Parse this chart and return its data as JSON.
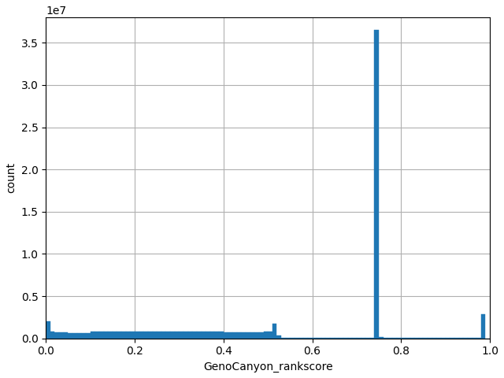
{
  "xlabel": "GenoCanyon_rankscore",
  "ylabel": "count",
  "bar_color": "#1f77b4",
  "xlim": [
    0.0,
    1.0
  ],
  "ylim": [
    0,
    38000000.0
  ],
  "grid": true,
  "figsize": [
    6.4,
    4.8
  ],
  "dpi": 100,
  "xticks": [
    0.0,
    0.2,
    0.4,
    0.6,
    0.8,
    1.0
  ],
  "yticks": [
    0,
    5000000.0,
    10000000.0,
    15000000.0,
    20000000.0,
    25000000.0,
    30000000.0,
    35000000.0
  ],
  "bin_edges": [
    0.0,
    0.01,
    0.02,
    0.03,
    0.04,
    0.05,
    0.06,
    0.07,
    0.08,
    0.09,
    0.1,
    0.11,
    0.12,
    0.13,
    0.14,
    0.15,
    0.16,
    0.17,
    0.18,
    0.19,
    0.2,
    0.21,
    0.22,
    0.23,
    0.24,
    0.25,
    0.26,
    0.27,
    0.28,
    0.29,
    0.3,
    0.31,
    0.32,
    0.33,
    0.34,
    0.35,
    0.36,
    0.37,
    0.38,
    0.39,
    0.4,
    0.41,
    0.42,
    0.43,
    0.44,
    0.45,
    0.46,
    0.47,
    0.48,
    0.49,
    0.5,
    0.51,
    0.52,
    0.53,
    0.54,
    0.55,
    0.56,
    0.57,
    0.58,
    0.59,
    0.6,
    0.61,
    0.62,
    0.63,
    0.64,
    0.65,
    0.66,
    0.67,
    0.68,
    0.69,
    0.7,
    0.71,
    0.72,
    0.73,
    0.74,
    0.75,
    0.76,
    0.77,
    0.78,
    0.79,
    0.8,
    0.81,
    0.82,
    0.83,
    0.84,
    0.85,
    0.86,
    0.87,
    0.88,
    0.89,
    0.9,
    0.91,
    0.92,
    0.93,
    0.94,
    0.95,
    0.96,
    0.97,
    0.98,
    0.99,
    1.0
  ],
  "counts": [
    2000000,
    800000,
    700000,
    700000,
    700000,
    650000,
    650000,
    650000,
    650000,
    650000,
    800000,
    800000,
    800000,
    800000,
    800000,
    800000,
    800000,
    800000,
    800000,
    800000,
    800000,
    800000,
    800000,
    800000,
    800000,
    800000,
    800000,
    800000,
    800000,
    800000,
    800000,
    800000,
    800000,
    800000,
    800000,
    800000,
    800000,
    800000,
    800000,
    800000,
    700000,
    700000,
    700000,
    750000,
    750000,
    750000,
    750000,
    750000,
    750000,
    800000,
    800000,
    1700000,
    300000,
    20000,
    20000,
    20000,
    20000,
    20000,
    20000,
    20000,
    20000,
    20000,
    20000,
    20000,
    20000,
    20000,
    20000,
    20000,
    20000,
    20000,
    20000,
    20000,
    20000,
    20000,
    36500000,
    150000,
    50000,
    20000,
    20000,
    20000,
    20000,
    20000,
    20000,
    20000,
    20000,
    20000,
    20000,
    20000,
    20000,
    20000,
    20000,
    20000,
    20000,
    20000,
    20000,
    20000,
    20000,
    20000,
    2900000,
    0
  ]
}
